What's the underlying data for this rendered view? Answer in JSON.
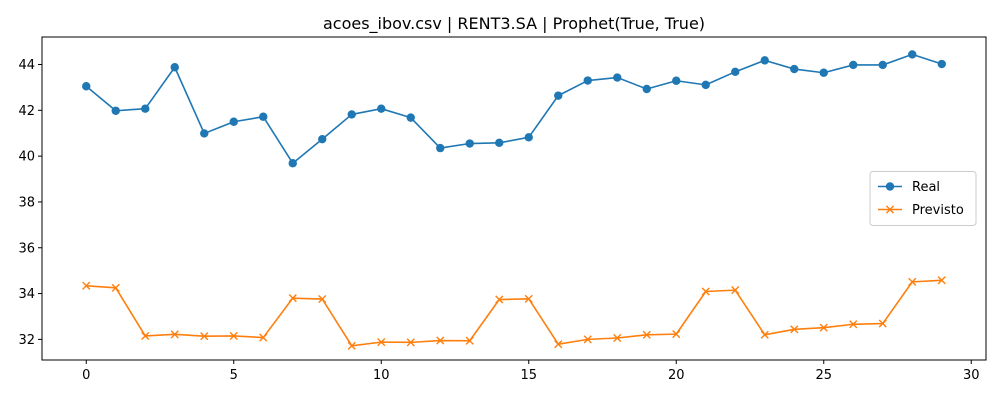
{
  "chart_data": {
    "type": "line",
    "title": "acoes_ibov.csv | RENT3.SA | Prophet(True, True)",
    "xlabel": "",
    "ylabel": "",
    "xlim": [
      -1.5,
      30.5
    ],
    "ylim": [
      31.1,
      45.2
    ],
    "x_ticks": [
      0,
      5,
      10,
      15,
      20,
      25,
      30
    ],
    "y_ticks": [
      32,
      34,
      36,
      38,
      40,
      42,
      44
    ],
    "grid": false,
    "legend_position": "center-right",
    "x": [
      0,
      1,
      2,
      3,
      4,
      5,
      6,
      7,
      8,
      9,
      10,
      11,
      12,
      13,
      14,
      15,
      16,
      17,
      18,
      19,
      20,
      21,
      22,
      23,
      24,
      25,
      26,
      27,
      28,
      29
    ],
    "series": [
      {
        "name": "Real",
        "color": "#1f77b4",
        "marker": "circle",
        "values": [
          43.05,
          41.98,
          42.07,
          43.88,
          40.99,
          41.5,
          41.72,
          39.69,
          40.74,
          41.82,
          42.07,
          41.68,
          40.35,
          40.55,
          40.58,
          40.82,
          42.64,
          43.3,
          43.43,
          42.93,
          43.29,
          43.11,
          43.68,
          44.18,
          43.8,
          43.64,
          43.98,
          43.98,
          44.44,
          44.02
        ]
      },
      {
        "name": "Previsto",
        "color": "#ff7f0e",
        "marker": "x",
        "values": [
          34.34,
          34.25,
          32.15,
          32.22,
          32.14,
          32.15,
          32.08,
          33.8,
          33.76,
          31.72,
          31.88,
          31.87,
          31.95,
          31.94,
          33.74,
          33.77,
          31.79,
          32.0,
          32.06,
          32.2,
          32.23,
          34.09,
          34.15,
          32.2,
          32.44,
          32.51,
          32.66,
          32.69,
          34.51,
          34.58
        ]
      }
    ]
  }
}
